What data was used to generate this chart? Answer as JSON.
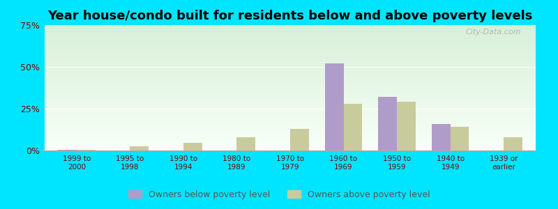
{
  "title": "Year house/condo built for residents below and above poverty levels",
  "categories": [
    "1999 to\n2000",
    "1995 to\n1998",
    "1990 to\n1994",
    "1980 to\n1989",
    "1970 to\n1979",
    "1960 to\n1969",
    "1950 to\n1959",
    "1940 to\n1949",
    "1939 or\nearlier"
  ],
  "below_poverty": [
    0.5,
    0.0,
    0.0,
    0.0,
    0.0,
    52.0,
    32.0,
    16.0,
    0.0
  ],
  "above_poverty": [
    0.5,
    2.5,
    4.5,
    8.0,
    13.0,
    28.0,
    29.0,
    14.0,
    8.0
  ],
  "below_color": "#b09cc8",
  "above_color": "#c8cc9c",
  "ylim": [
    0,
    75
  ],
  "yticks": [
    0,
    25,
    50,
    75
  ],
  "ytick_labels": [
    "0%",
    "25%",
    "50%",
    "75%"
  ],
  "outer_background": "#00e5ff",
  "title_fontsize": 13,
  "legend_below": "Owners below poverty level",
  "legend_above": "Owners above poverty level",
  "watermark": "City-Data.com"
}
